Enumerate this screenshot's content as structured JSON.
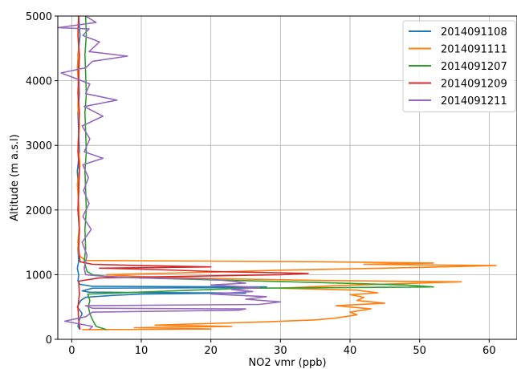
{
  "chart_data": {
    "type": "line",
    "title": "",
    "xlabel": "NO2 vmr (ppb)",
    "ylabel": "Altitude (m a.s.l)",
    "xlim": [
      -2,
      64
    ],
    "ylim": [
      0,
      5000
    ],
    "xticks": [
      0,
      10,
      20,
      30,
      40,
      50,
      60
    ],
    "yticks": [
      0,
      1000,
      2000,
      3000,
      4000,
      5000
    ],
    "grid": true,
    "legend_position": "top-right",
    "series": [
      {
        "name": "2014091108",
        "color": "#1f77b4",
        "points": [
          [
            1.2,
            150
          ],
          [
            0.9,
            200
          ],
          [
            1.1,
            300
          ],
          [
            1.5,
            400
          ],
          [
            0.8,
            500
          ],
          [
            1.3,
            600
          ],
          [
            2.0,
            650
          ],
          [
            6.0,
            680
          ],
          [
            10.0,
            700
          ],
          [
            18.0,
            710
          ],
          [
            25.0,
            715
          ],
          [
            18.0,
            720
          ],
          [
            8.0,
            725
          ],
          [
            2.5,
            730
          ],
          [
            1.5,
            750
          ],
          [
            3.0,
            790
          ],
          [
            24.0,
            800
          ],
          [
            28.0,
            810
          ],
          [
            3.0,
            820
          ],
          [
            1.2,
            850
          ],
          [
            0.9,
            900
          ],
          [
            1.0,
            1000
          ],
          [
            0.8,
            1100
          ],
          [
            1.0,
            1200
          ],
          [
            0.9,
            1400
          ],
          [
            1.1,
            1700
          ],
          [
            0.9,
            2000
          ],
          [
            1.0,
            2300
          ],
          [
            0.8,
            2600
          ],
          [
            1.1,
            2900
          ],
          [
            1.0,
            3200
          ],
          [
            0.9,
            3500
          ],
          [
            1.1,
            3800
          ],
          [
            1.0,
            4100
          ],
          [
            0.9,
            4400
          ],
          [
            1.2,
            4700
          ],
          [
            1.0,
            5000
          ]
        ]
      },
      {
        "name": "2014091111",
        "color": "#ff7f0e",
        "points": [
          [
            1.5,
            150
          ],
          [
            20.0,
            160
          ],
          [
            9.0,
            180
          ],
          [
            23.0,
            200
          ],
          [
            12.0,
            220
          ],
          [
            28.0,
            270
          ],
          [
            35.0,
            300
          ],
          [
            38.0,
            330
          ],
          [
            41.0,
            380
          ],
          [
            40.0,
            420
          ],
          [
            43.0,
            470
          ],
          [
            38.0,
            520
          ],
          [
            45.0,
            560
          ],
          [
            41.0,
            600
          ],
          [
            42.0,
            650
          ],
          [
            40.0,
            690
          ],
          [
            44.0,
            720
          ],
          [
            41.0,
            760
          ],
          [
            30.0,
            790
          ],
          [
            38.0,
            830
          ],
          [
            47.0,
            860
          ],
          [
            56.0,
            890
          ],
          [
            36.0,
            910
          ],
          [
            20.0,
            940
          ],
          [
            10.0,
            970
          ],
          [
            5.0,
            1000
          ],
          [
            20.0,
            1040
          ],
          [
            30.0,
            1070
          ],
          [
            45.0,
            1100
          ],
          [
            61.0,
            1140
          ],
          [
            42.0,
            1160
          ],
          [
            52.0,
            1180
          ],
          [
            36.0,
            1200
          ],
          [
            2.0,
            1220
          ],
          [
            1.0,
            1300
          ],
          [
            0.9,
            1500
          ],
          [
            1.1,
            1800
          ],
          [
            1.0,
            2100
          ],
          [
            0.8,
            2400
          ],
          [
            1.2,
            2700
          ],
          [
            0.9,
            3000
          ],
          [
            1.1,
            3300
          ],
          [
            0.9,
            3600
          ],
          [
            1.0,
            3900
          ],
          [
            0.8,
            4200
          ],
          [
            1.0,
            4500
          ],
          [
            0.9,
            4800
          ],
          [
            1.0,
            5000
          ]
        ]
      },
      {
        "name": "2014091207",
        "color": "#2ca02c",
        "points": [
          [
            5.0,
            150
          ],
          [
            3.5,
            200
          ],
          [
            3.0,
            300
          ],
          [
            2.6,
            400
          ],
          [
            2.4,
            500
          ],
          [
            2.6,
            600
          ],
          [
            2.3,
            700
          ],
          [
            25.0,
            790
          ],
          [
            52.0,
            810
          ],
          [
            48.0,
            840
          ],
          [
            35.0,
            880
          ],
          [
            20.0,
            920
          ],
          [
            6.0,
            960
          ],
          [
            3.0,
            1000
          ],
          [
            2.2,
            1050
          ],
          [
            1.8,
            1200
          ],
          [
            2.0,
            1400
          ],
          [
            1.9,
            1700
          ],
          [
            2.1,
            2000
          ],
          [
            2.0,
            2300
          ],
          [
            1.9,
            2600
          ],
          [
            2.1,
            2900
          ],
          [
            2.0,
            3200
          ],
          [
            1.9,
            3500
          ],
          [
            2.1,
            3800
          ],
          [
            2.0,
            4100
          ],
          [
            1.9,
            4400
          ],
          [
            2.1,
            4700
          ],
          [
            2.0,
            5000
          ]
        ]
      },
      {
        "name": "2014091209",
        "color": "#d62728",
        "points": [
          [
            1.2,
            150
          ],
          [
            1.0,
            300
          ],
          [
            0.9,
            500
          ],
          [
            1.1,
            700
          ],
          [
            1.0,
            900
          ],
          [
            4.0,
            950
          ],
          [
            30.0,
            1000
          ],
          [
            34.0,
            1020
          ],
          [
            20.0,
            1050
          ],
          [
            12.0,
            1080
          ],
          [
            4.0,
            1100
          ],
          [
            20.0,
            1120
          ],
          [
            10.0,
            1140
          ],
          [
            3.0,
            1160
          ],
          [
            1.2,
            1200
          ],
          [
            1.0,
            1400
          ],
          [
            1.1,
            1700
          ],
          [
            0.9,
            2000
          ],
          [
            1.0,
            2300
          ],
          [
            1.1,
            2600
          ],
          [
            0.9,
            2900
          ],
          [
            1.0,
            3200
          ],
          [
            1.1,
            3500
          ],
          [
            0.9,
            3800
          ],
          [
            1.0,
            4100
          ],
          [
            1.1,
            4400
          ],
          [
            0.9,
            4700
          ],
          [
            1.0,
            5000
          ]
        ]
      },
      {
        "name": "2014091211",
        "color": "#9467bd",
        "points": [
          [
            2.5,
            150
          ],
          [
            3.0,
            200
          ],
          [
            -1.0,
            280
          ],
          [
            2.0,
            350
          ],
          [
            3.0,
            420
          ],
          [
            24.0,
            450
          ],
          [
            25.0,
            470
          ],
          [
            3.0,
            480
          ],
          [
            2.0,
            520
          ],
          [
            27.0,
            540
          ],
          [
            30.0,
            580
          ],
          [
            25.0,
            620
          ],
          [
            28.0,
            660
          ],
          [
            20.0,
            700
          ],
          [
            26.0,
            740
          ],
          [
            23.0,
            770
          ],
          [
            27.0,
            800
          ],
          [
            20.0,
            840
          ],
          [
            25.0,
            870
          ],
          [
            23.0,
            900
          ],
          [
            20.0,
            930
          ],
          [
            10.0,
            950
          ],
          [
            4.0,
            980
          ],
          [
            2.0,
            1000
          ],
          [
            1.8,
            1100
          ],
          [
            2.2,
            1300
          ],
          [
            1.5,
            1500
          ],
          [
            2.8,
            1700
          ],
          [
            1.6,
            1900
          ],
          [
            2.5,
            2100
          ],
          [
            1.7,
            2300
          ],
          [
            2.4,
            2500
          ],
          [
            1.6,
            2700
          ],
          [
            4.5,
            2800
          ],
          [
            1.8,
            2900
          ],
          [
            2.6,
            3100
          ],
          [
            1.5,
            3300
          ],
          [
            4.5,
            3450
          ],
          [
            1.8,
            3600
          ],
          [
            6.5,
            3700
          ],
          [
            2.0,
            3800
          ],
          [
            2.6,
            3950
          ],
          [
            -1.5,
            4120
          ],
          [
            2.0,
            4200
          ],
          [
            3.0,
            4300
          ],
          [
            8.0,
            4380
          ],
          [
            2.5,
            4450
          ],
          [
            4.0,
            4600
          ],
          [
            1.6,
            4700
          ],
          [
            2.5,
            4800
          ],
          [
            -2.0,
            4820
          ],
          [
            3.5,
            4900
          ],
          [
            2.0,
            5000
          ]
        ]
      }
    ]
  }
}
